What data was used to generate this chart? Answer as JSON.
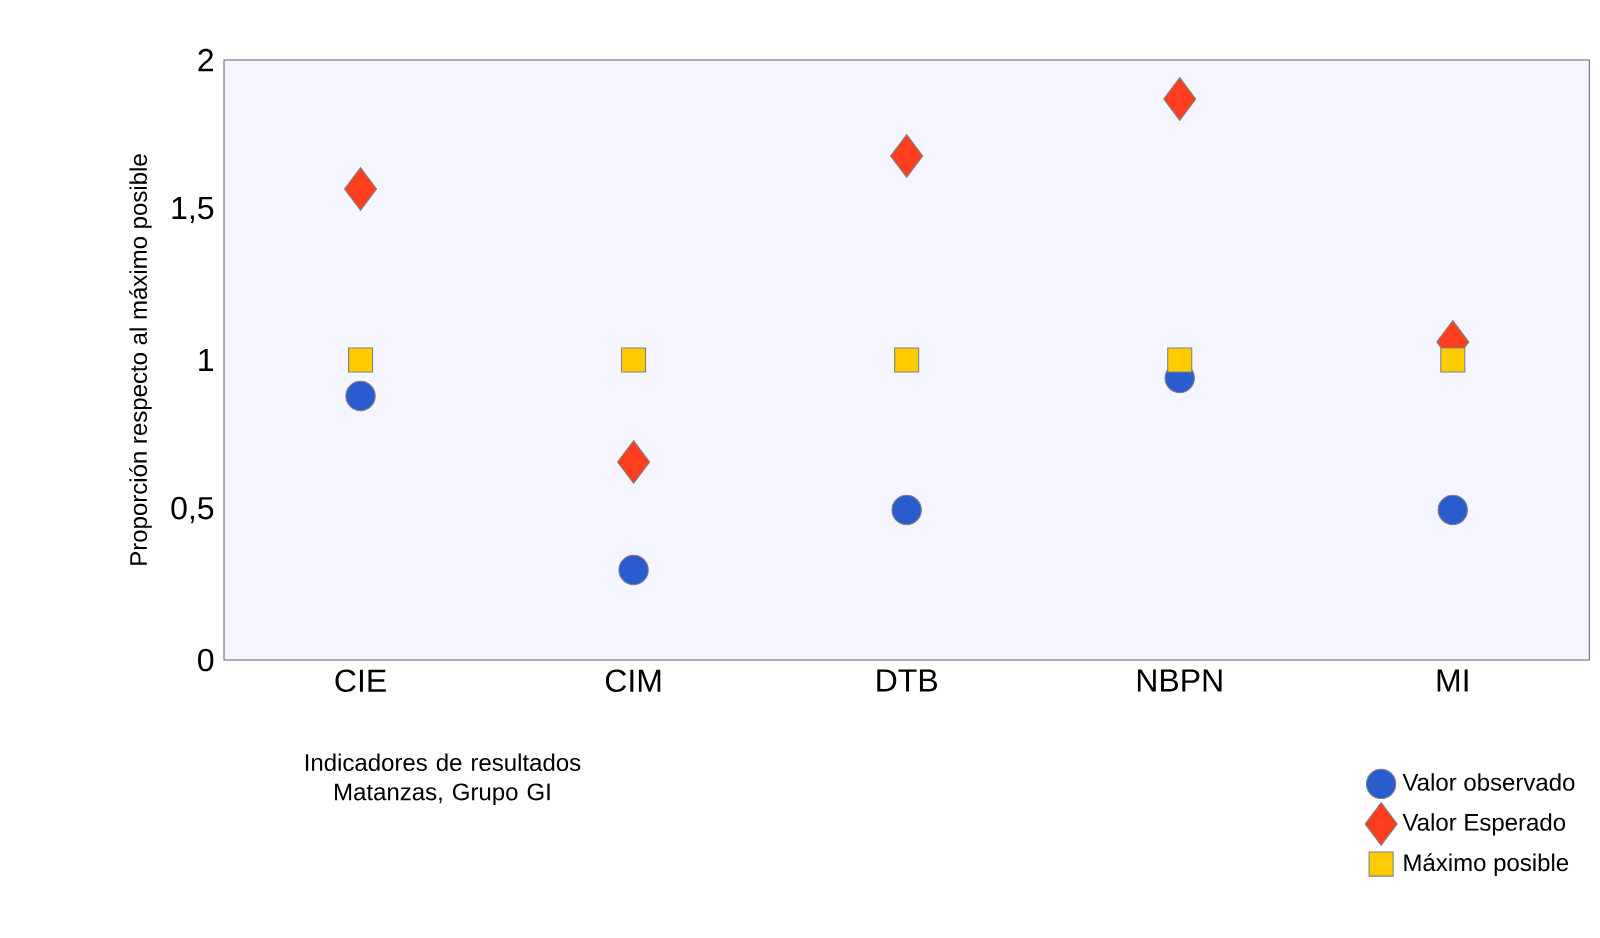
{
  "chart_data": {
    "type": "scatter",
    "xlabel": "Indicadores de resultados Matanzas, Grupo GI",
    "ylabel": "Proporción respecto al máximo posible",
    "categories": [
      "CIE",
      "CIM",
      "DTB",
      "NBPN",
      "MI"
    ],
    "series": [
      {
        "name": "Valor observado",
        "color": "#2a5cd0",
        "marker": "circle",
        "values": [
          0.88,
          0.3,
          0.5,
          0.94,
          0.5
        ]
      },
      {
        "name": "Valor Esperado",
        "color": "#ff3d1f",
        "marker": "diamond",
        "values": [
          1.57,
          0.66,
          1.68,
          1.87,
          1.06
        ]
      },
      {
        "name": "Máximo posible",
        "color": "#ffcc00",
        "marker": "square",
        "values": [
          1,
          1,
          1,
          1,
          1
        ]
      }
    ],
    "ylim": [
      0,
      2
    ],
    "yticks": [
      0,
      {
        "value": 0.5,
        "label": "0,5"
      },
      1,
      {
        "value": 1.5,
        "label": "1,5"
      },
      2
    ],
    "legend": "bottom right"
  }
}
